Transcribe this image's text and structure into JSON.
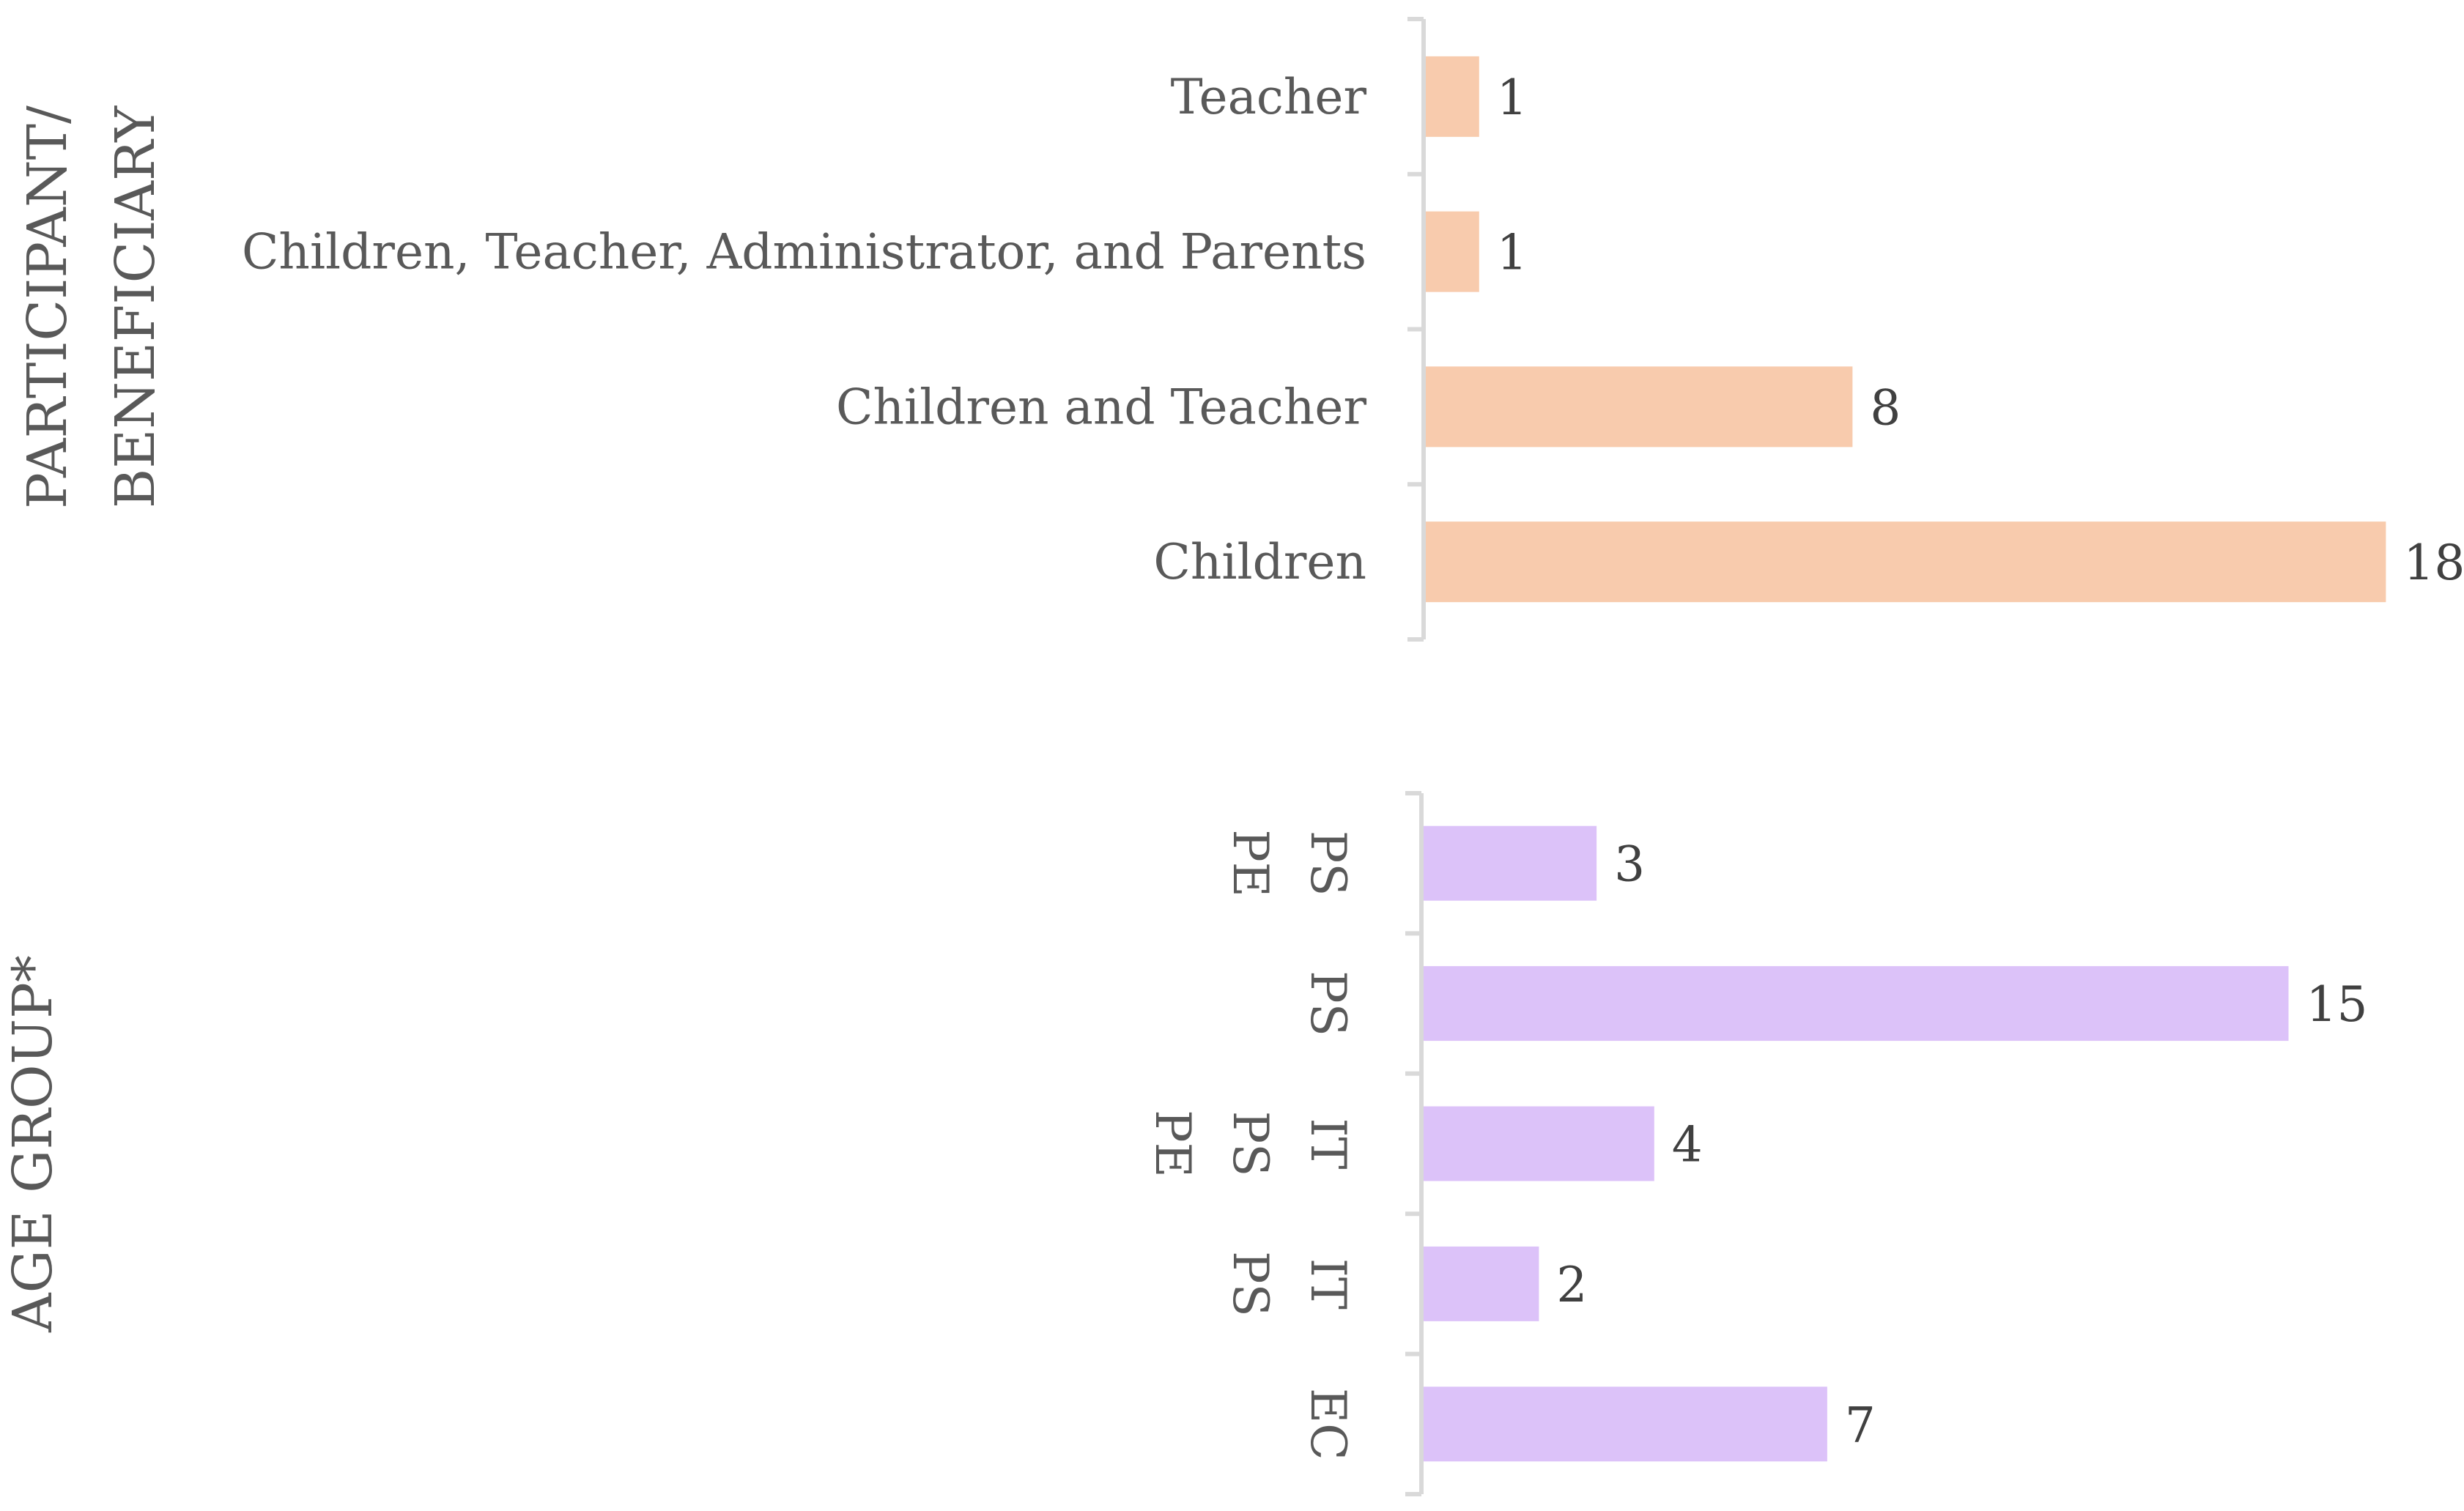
{
  "colors": {
    "panel_top_bar": "#f8cbad",
    "panel_bottom_bar": "#dcc2f9",
    "text": "#595959",
    "axis": "#d9d9d9"
  },
  "chart_data": [
    {
      "type": "bar",
      "orientation": "horizontal",
      "ylabel": [
        "PARTICIPANT/",
        "BENEFICIARY"
      ],
      "categories": [
        "Teacher",
        "Children, Teacher, Administrator, and Parents",
        "Children and Teacher",
        "Children"
      ],
      "values": [
        1,
        1,
        8,
        18
      ],
      "data_labels": true,
      "color": "#f8cbad"
    },
    {
      "type": "bar",
      "orientation": "horizontal",
      "ylabel": [
        "AGE GROUP*"
      ],
      "categories": [
        [
          "PS",
          "PE"
        ],
        [
          "PS"
        ],
        [
          "IT",
          "PS",
          "PE"
        ],
        [
          "IT",
          "PS"
        ],
        [
          "EC"
        ]
      ],
      "values": [
        3,
        15,
        4,
        2,
        7
      ],
      "data_labels": true,
      "color": "#dcc2f9"
    }
  ]
}
